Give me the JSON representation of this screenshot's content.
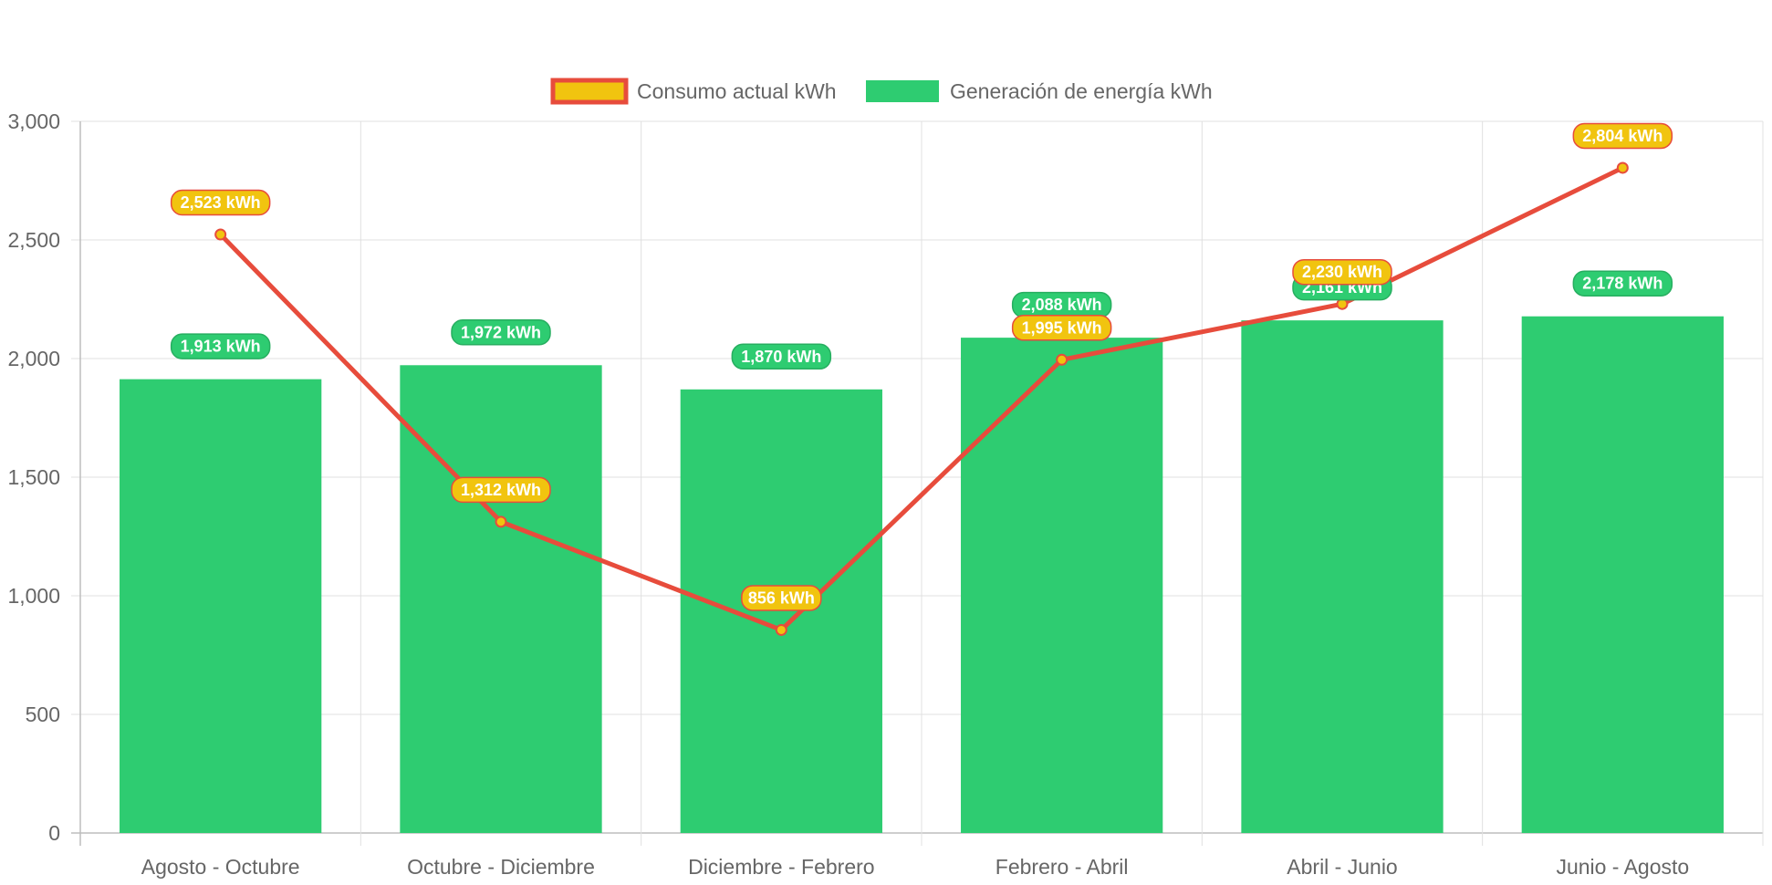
{
  "chart_data": {
    "type": "bar",
    "categories": [
      "Agosto - Octubre",
      "Octubre - Diciembre",
      "Diciembre - Febrero",
      "Febrero - Abril",
      "Abril - Junio",
      "Junio - Agosto"
    ],
    "series": [
      {
        "name": "Consumo actual kWh",
        "type": "line",
        "values": [
          2523,
          1312,
          856,
          1995,
          2230,
          2804
        ],
        "labels": [
          "2,523 kWh",
          "1,312 kWh",
          "856 kWh",
          "1,995 kWh",
          "2,230 kWh",
          "2,804 kWh"
        ],
        "line_color": "#e74c3c",
        "fill_color": "#f1c40f"
      },
      {
        "name": "Generación de energía kWh",
        "type": "bar",
        "values": [
          1913,
          1972,
          1870,
          2088,
          2161,
          2178
        ],
        "labels": [
          "1,913 kWh",
          "1,972 kWh",
          "1,870 kWh",
          "2,088 kWh",
          "2,161 kWh",
          "2,178 kWh"
        ],
        "color": "#2ecc71",
        "border_color": "#27ae60"
      }
    ],
    "ylim": [
      0,
      3000
    ],
    "yticks": [
      "0",
      "500",
      "1,000",
      "1,500",
      "2,000",
      "2,500",
      "3,000"
    ],
    "grid": true,
    "legend_position": "top"
  }
}
